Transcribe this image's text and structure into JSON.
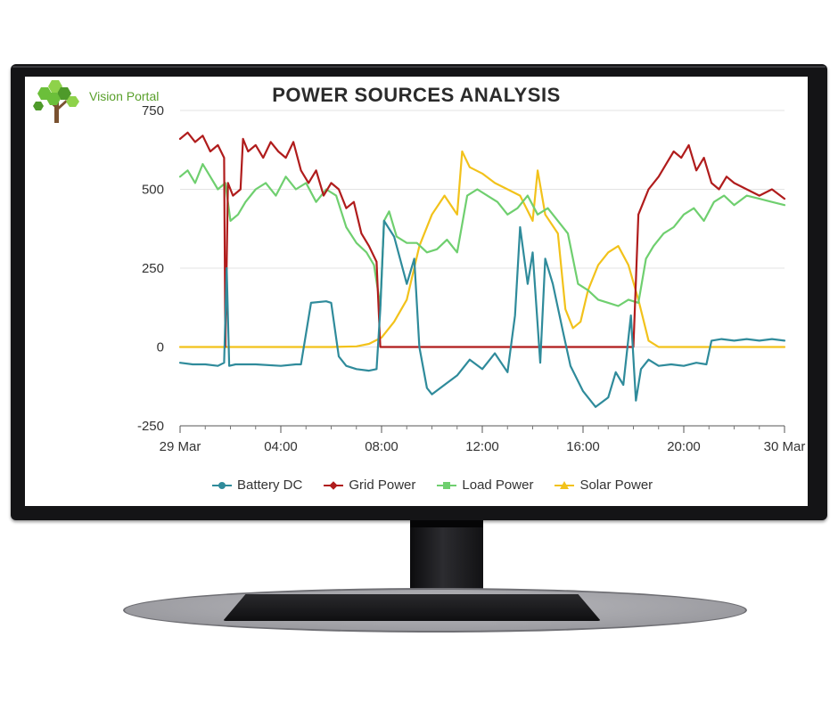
{
  "chart_data": {
    "type": "line",
    "title": "POWER SOURCES ANALYSIS",
    "xlabel": "",
    "ylabel": "",
    "x_ticks": [
      "29 Mar",
      "04:00",
      "08:00",
      "12:00",
      "16:00",
      "20:00",
      "30 Mar"
    ],
    "x_range_hours": [
      0,
      24
    ],
    "y_ticks": [
      "750",
      "500",
      "250",
      "0",
      "-250"
    ],
    "ylim": [
      -250,
      750
    ],
    "grid": "horizontal",
    "legend_position": "bottom",
    "series": [
      {
        "name": "Battery DC",
        "color": "#2f8b9b",
        "marker": "circle",
        "x": [
          0,
          0.5,
          1,
          1.5,
          1.75,
          1.85,
          1.95,
          2.2,
          3,
          4,
          4.6,
          4.8,
          5.2,
          5.8,
          6,
          6.3,
          6.6,
          7,
          7.5,
          7.8,
          7.95,
          8.1,
          8.5,
          9,
          9.3,
          9.5,
          9.8,
          10,
          10.5,
          11,
          11.5,
          12,
          12.5,
          13,
          13.3,
          13.5,
          13.8,
          14,
          14.3,
          14.5,
          14.8,
          15.2,
          15.5,
          16,
          16.5,
          17,
          17.3,
          17.6,
          17.9,
          18.1,
          18.3,
          18.6,
          19,
          19.5,
          20,
          20.5,
          20.9,
          21.1,
          21.5,
          22,
          22.5,
          23,
          23.5,
          24
        ],
        "values": [
          -50,
          -55,
          -55,
          -60,
          -50,
          250,
          -60,
          -55,
          -55,
          -60,
          -55,
          -55,
          140,
          145,
          140,
          -30,
          -60,
          -70,
          -75,
          -70,
          120,
          400,
          350,
          200,
          280,
          0,
          -130,
          -150,
          -120,
          -90,
          -40,
          -70,
          -20,
          -80,
          100,
          380,
          200,
          300,
          -50,
          280,
          200,
          50,
          -60,
          -140,
          -190,
          -160,
          -80,
          -120,
          100,
          -170,
          -70,
          -40,
          -60,
          -55,
          -60,
          -50,
          -55,
          20,
          25,
          20,
          25,
          20,
          25,
          20
        ]
      },
      {
        "name": "Grid Power",
        "color": "#b01c1c",
        "marker": "diamond",
        "x": [
          0,
          0.3,
          0.6,
          0.9,
          1.2,
          1.5,
          1.75,
          1.8,
          1.9,
          2.1,
          2.4,
          2.5,
          2.7,
          3,
          3.3,
          3.6,
          3.9,
          4.2,
          4.5,
          4.8,
          5.1,
          5.4,
          5.7,
          6,
          6.3,
          6.6,
          6.9,
          7.2,
          7.5,
          7.8,
          7.95,
          8.1,
          10,
          12,
          14,
          16,
          17,
          18,
          18.2,
          18.4,
          18.6,
          19,
          19.3,
          19.6,
          19.9,
          20.2,
          20.5,
          20.8,
          21.1,
          21.4,
          21.7,
          22,
          22.5,
          23,
          23.5,
          24
        ],
        "values": [
          660,
          680,
          650,
          670,
          620,
          640,
          600,
          0,
          520,
          480,
          500,
          660,
          620,
          640,
          600,
          650,
          620,
          600,
          650,
          560,
          520,
          560,
          480,
          520,
          500,
          440,
          460,
          360,
          320,
          270,
          0,
          0,
          0,
          0,
          0,
          0,
          0,
          0,
          420,
          460,
          500,
          540,
          580,
          620,
          600,
          640,
          560,
          600,
          520,
          500,
          540,
          520,
          500,
          480,
          500,
          470
        ]
      },
      {
        "name": "Load Power",
        "color": "#6fcf6f",
        "marker": "square",
        "x": [
          0,
          0.3,
          0.6,
          0.9,
          1.2,
          1.5,
          1.8,
          2,
          2.3,
          2.6,
          3,
          3.4,
          3.8,
          4.2,
          4.6,
          5,
          5.4,
          5.8,
          6.2,
          6.6,
          7,
          7.4,
          7.7,
          7.95,
          8.1,
          8.3,
          8.6,
          9,
          9.4,
          9.8,
          10.2,
          10.6,
          11,
          11.4,
          11.8,
          12.2,
          12.6,
          13,
          13.4,
          13.8,
          14.2,
          14.6,
          15,
          15.4,
          15.8,
          16.2,
          16.6,
          17,
          17.4,
          17.8,
          18.2,
          18.5,
          18.8,
          19.2,
          19.6,
          20,
          20.4,
          20.8,
          21.2,
          21.6,
          22,
          22.5,
          23,
          23.5,
          24
        ],
        "values": [
          540,
          560,
          520,
          580,
          540,
          500,
          520,
          400,
          420,
          460,
          500,
          520,
          480,
          540,
          500,
          520,
          460,
          500,
          480,
          380,
          330,
          300,
          260,
          130,
          400,
          430,
          350,
          330,
          330,
          300,
          310,
          340,
          300,
          480,
          500,
          480,
          460,
          420,
          440,
          480,
          420,
          440,
          400,
          360,
          200,
          180,
          150,
          140,
          130,
          150,
          140,
          280,
          320,
          360,
          380,
          420,
          440,
          400,
          460,
          480,
          450,
          480,
          470,
          460,
          450
        ]
      },
      {
        "name": "Solar Power",
        "color": "#f2c21b",
        "marker": "triangle",
        "x": [
          0,
          2,
          4,
          6,
          7,
          7.5,
          8,
          8.5,
          9,
          9.5,
          10,
          10.5,
          11,
          11.2,
          11.5,
          12,
          12.5,
          13,
          13.5,
          14,
          14.2,
          14.5,
          15,
          15.3,
          15.6,
          15.9,
          16.2,
          16.6,
          17,
          17.4,
          17.8,
          18.2,
          18.6,
          19,
          20,
          21,
          22,
          23,
          24
        ],
        "values": [
          0,
          0,
          0,
          0,
          2,
          10,
          30,
          80,
          150,
          320,
          420,
          480,
          420,
          620,
          570,
          550,
          520,
          500,
          480,
          400,
          560,
          420,
          360,
          120,
          60,
          80,
          180,
          260,
          300,
          320,
          260,
          150,
          20,
          0,
          0,
          0,
          0,
          0,
          0
        ]
      }
    ]
  },
  "brand": {
    "name": "Vision Portal",
    "icon": "tree-icon",
    "colors": [
      "#6bbf3a",
      "#8ed24a",
      "#4e9a2a",
      "#7a5230"
    ]
  }
}
